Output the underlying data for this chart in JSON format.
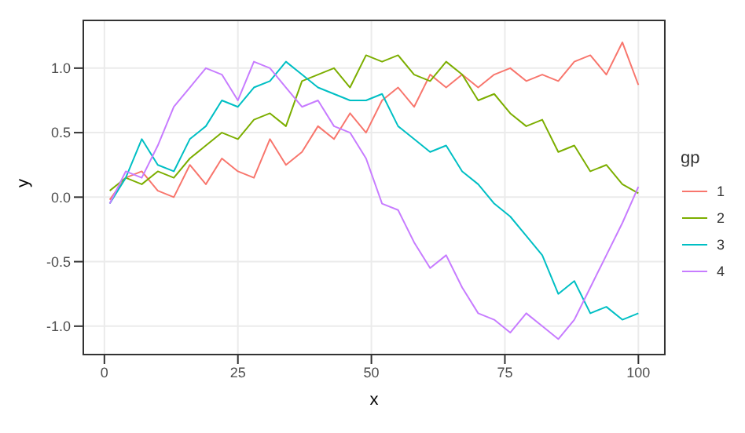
{
  "chart_data": {
    "type": "line",
    "xlabel": "x",
    "ylabel": "y",
    "legend_title": "gp",
    "legend": "right",
    "grid": true,
    "marker": "none",
    "line_style": "solid",
    "x": [
      1,
      4,
      7,
      10,
      13,
      16,
      19,
      22,
      25,
      28,
      31,
      34,
      37,
      40,
      43,
      46,
      49,
      52,
      55,
      58,
      61,
      64,
      67,
      70,
      73,
      76,
      79,
      82,
      85,
      88,
      91,
      94,
      97,
      100
    ],
    "xlim": [
      -3.95,
      104.95
    ],
    "xticks": [
      0,
      25,
      50,
      75,
      100
    ],
    "ylim": [
      -1.22,
      1.37
    ],
    "yticks": [
      {
        "value": -1,
        "label": "-1.0"
      },
      -0.5,
      {
        "value": 0,
        "label": "0.0"
      },
      0.5,
      {
        "value": 1,
        "label": "1.0"
      }
    ],
    "series": [
      {
        "name": "1",
        "color": "#f8766d",
        "values": [
          -0.02,
          0.15,
          0.2,
          0.05,
          0.0,
          0.25,
          0.1,
          0.3,
          0.2,
          0.15,
          0.45,
          0.25,
          0.35,
          0.55,
          0.45,
          0.65,
          0.5,
          0.75,
          0.85,
          0.7,
          0.95,
          0.85,
          0.95,
          0.85,
          0.95,
          1.0,
          0.9,
          0.95,
          0.9,
          1.05,
          1.1,
          0.95,
          1.2,
          0.87
        ]
      },
      {
        "name": "2",
        "color": "#7cae00",
        "values": [
          0.05,
          0.15,
          0.1,
          0.2,
          0.15,
          0.3,
          0.4,
          0.5,
          0.45,
          0.6,
          0.65,
          0.55,
          0.9,
          0.95,
          1.0,
          0.85,
          1.1,
          1.05,
          1.1,
          0.95,
          0.9,
          1.05,
          0.95,
          0.75,
          0.8,
          0.65,
          0.55,
          0.6,
          0.35,
          0.4,
          0.2,
          0.25,
          0.1,
          0.03
        ]
      },
      {
        "name": "3",
        "color": "#00bfc4",
        "values": [
          -0.05,
          0.15,
          0.45,
          0.25,
          0.2,
          0.45,
          0.55,
          0.75,
          0.7,
          0.85,
          0.9,
          1.05,
          0.95,
          0.85,
          0.8,
          0.75,
          0.75,
          0.8,
          0.55,
          0.45,
          0.35,
          0.4,
          0.2,
          0.1,
          -0.05,
          -0.15,
          -0.3,
          -0.45,
          -0.75,
          -0.65,
          -0.9,
          -0.85,
          -0.95,
          -0.9
        ]
      },
      {
        "name": "4",
        "color": "#c77cff",
        "values": [
          -0.05,
          0.2,
          0.15,
          0.4,
          0.7,
          0.85,
          1.0,
          0.95,
          0.75,
          1.05,
          1.0,
          0.85,
          0.7,
          0.75,
          0.55,
          0.5,
          0.3,
          -0.05,
          -0.1,
          -0.35,
          -0.55,
          -0.45,
          -0.7,
          -0.9,
          -0.95,
          -1.05,
          -0.9,
          -1.0,
          -1.1,
          -0.95,
          -0.7,
          -0.45,
          -0.2,
          0.08
        ]
      }
    ]
  }
}
